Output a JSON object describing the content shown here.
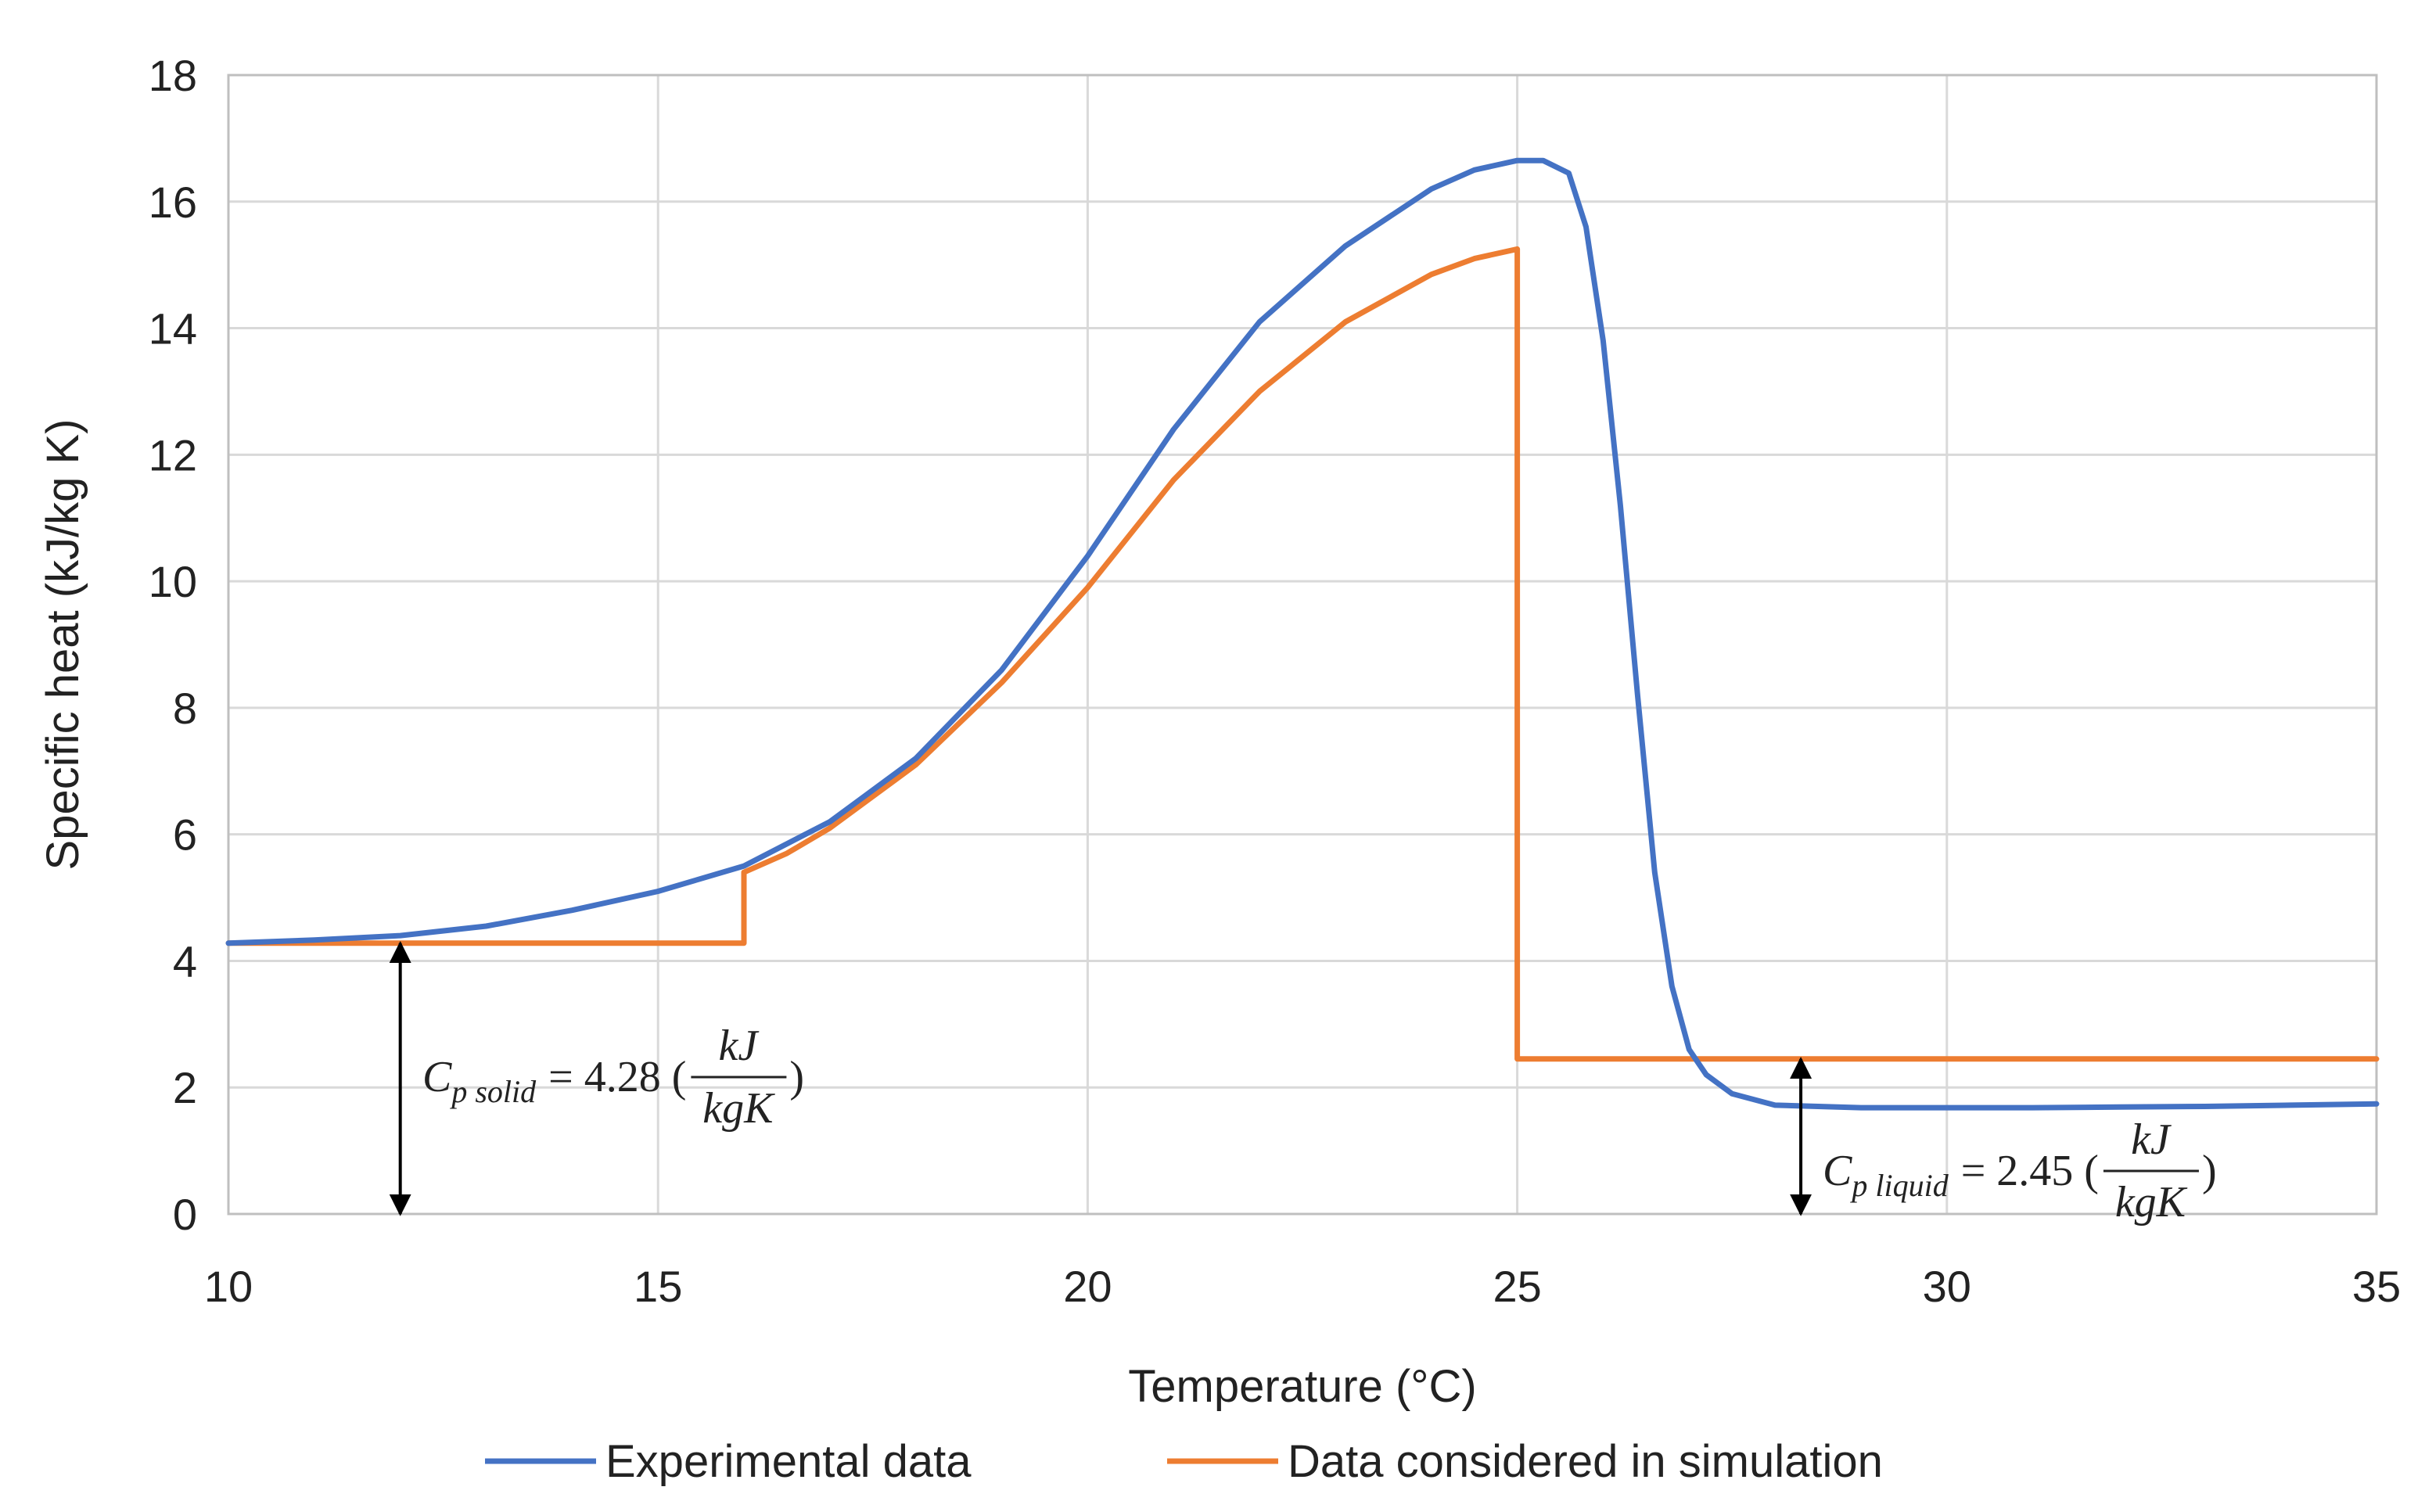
{
  "chart_data": {
    "type": "line",
    "title": "",
    "xlabel": "Temperature (°C)",
    "ylabel": "Specific heat (kJ/kg K)",
    "xlim": [
      10,
      35
    ],
    "ylim": [
      0,
      18
    ],
    "x_ticks": [
      "10",
      "15",
      "20",
      "25",
      "30",
      "35"
    ],
    "y_ticks": [
      "0",
      "2",
      "4",
      "6",
      "8",
      "10",
      "12",
      "14",
      "16",
      "18"
    ],
    "grid": true,
    "legend_position": "bottom",
    "series": [
      {
        "name": "Experimental data",
        "color": "#4472c4",
        "x": [
          10,
          11,
          12,
          13,
          14,
          15,
          16,
          17,
          18,
          19,
          20,
          21,
          22,
          23,
          24,
          24.5,
          25,
          25.3,
          25.6,
          25.8,
          26.0,
          26.2,
          26.4,
          26.6,
          26.8,
          27.0,
          27.2,
          27.5,
          28,
          28.5,
          29,
          30,
          31,
          32,
          33,
          34,
          35
        ],
        "y": [
          4.28,
          4.33,
          4.4,
          4.55,
          4.8,
          5.1,
          5.5,
          6.2,
          7.2,
          8.6,
          10.4,
          12.4,
          14.1,
          15.3,
          16.2,
          16.5,
          16.65,
          16.65,
          16.45,
          15.6,
          13.8,
          11.2,
          8.2,
          5.4,
          3.6,
          2.6,
          2.2,
          1.9,
          1.72,
          1.7,
          1.68,
          1.68,
          1.68,
          1.69,
          1.7,
          1.72,
          1.74
        ]
      },
      {
        "name": "Data considered in simulation",
        "color": "#ed7d31",
        "x": [
          10,
          11,
          12,
          13,
          14,
          15,
          16,
          16,
          16.5,
          17,
          18,
          19,
          20,
          21,
          22,
          23,
          24,
          24.5,
          25,
          25,
          26,
          28,
          30,
          32,
          35
        ],
        "y": [
          4.28,
          4.28,
          4.28,
          4.28,
          4.28,
          4.28,
          4.28,
          5.4,
          5.7,
          6.1,
          7.1,
          8.4,
          9.9,
          11.6,
          13.0,
          14.1,
          14.85,
          15.1,
          15.25,
          2.45,
          2.45,
          2.45,
          2.45,
          2.45,
          2.45
        ]
      }
    ],
    "annotations": [
      {
        "label": "Cp solid = 4.28 (kJ/kgK)",
        "symbol": "C",
        "subscript": "p solid",
        "value": "= 4.28 (",
        "num": "kJ",
        "den": "kgK",
        "close": ")",
        "x": 12,
        "y_from": 0,
        "y_to": 4.28
      },
      {
        "label": "Cp liquid = 2.45 (kJ/kgK)",
        "symbol": "C",
        "subscript": "p liquid",
        "value": "= 2.45 (",
        "num": "kJ",
        "den": "kgK",
        "close": ")",
        "x": 28.3,
        "y_from": 0,
        "y_to": 2.45
      }
    ]
  }
}
